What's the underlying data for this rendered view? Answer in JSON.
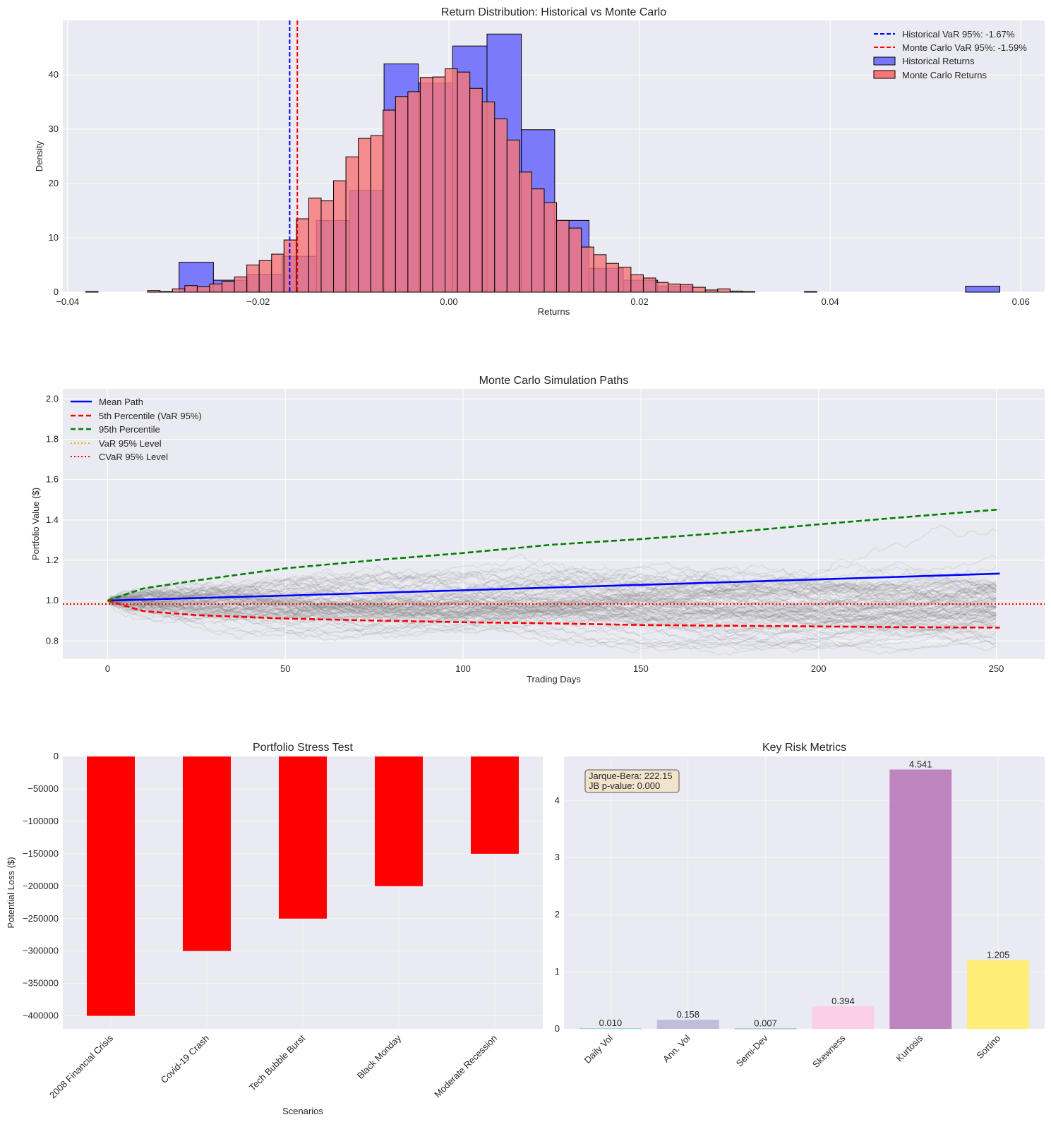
{
  "panel1": {
    "title": "Return Distribution: Historical vs Monte Carlo",
    "xlabel": "Returns",
    "ylabel": "Density",
    "legend": [
      {
        "label": "Historical VaR 95%: -1.67%",
        "color": "#0000ff",
        "kind": "dashed-line"
      },
      {
        "label": "Monte Carlo VaR 95%: -1.59%",
        "color": "#ff0000",
        "kind": "dashed-line"
      },
      {
        "label": "Historical Returns",
        "color": "#7777fb",
        "kind": "patch"
      },
      {
        "label": "Monte Carlo Returns",
        "color": "#f77678",
        "kind": "patch"
      }
    ]
  },
  "panel2": {
    "title": "Monte Carlo Simulation Paths",
    "xlabel": "Trading Days",
    "ylabel": "Portfolio Value ($)",
    "legend": [
      {
        "label": "Mean Path",
        "color": "#0000ff",
        "style": "solid"
      },
      {
        "label": "5th Percentile (VaR 95%)",
        "color": "#ff0000",
        "style": "dashed"
      },
      {
        "label": "95th Percentile",
        "color": "#008000",
        "style": "dashed"
      },
      {
        "label": "VaR 95% Level",
        "color": "#ffa500",
        "style": "dotted"
      },
      {
        "label": "CVaR 95% Level",
        "color": "#ff0000",
        "style": "dotted"
      }
    ]
  },
  "panel3": {
    "title": "Portfolio Stress Test",
    "xlabel": "Scenarios",
    "ylabel": "Potential Loss ($)"
  },
  "panel4": {
    "title": "Key Risk Metrics",
    "annotation_line1": "Jarque-Bera: 222.15",
    "annotation_line2": "JB p-value: 0.000"
  },
  "chart_data": [
    {
      "type": "histogram",
      "title": "Return Distribution: Historical vs Monte Carlo",
      "xlabel": "Returns",
      "ylabel": "Density",
      "xlim": [
        -0.0405,
        0.0625
      ],
      "ylim": [
        0,
        50
      ],
      "xticks": [
        -0.04,
        -0.02,
        0.0,
        0.02,
        0.04,
        0.06
      ],
      "yticks": [
        0,
        10,
        20,
        30,
        40
      ],
      "grid": true,
      "legend_position": "upper right",
      "series": [
        {
          "name": "Historical Returns",
          "color": "#7777fb",
          "bin_edges": [
            -0.0283,
            -0.0247,
            -0.0211,
            -0.0175,
            -0.0139,
            -0.0104,
            -0.0068,
            -0.0032,
            0.0004,
            0.004,
            0.0076,
            0.0111,
            0.0147,
            0.0183,
            0.0219,
            0.0255,
            0.0291,
            0.0327,
            0.0363,
            0.0399,
            0.0435,
            0.047,
            0.0506,
            0.0542,
            0.0578
          ],
          "density": [
            5.5,
            2.2,
            3.3,
            6.6,
            13.2,
            18.7,
            42.0,
            38.5,
            45.3,
            47.5,
            29.9,
            13.2,
            4.4,
            2.2,
            1.1,
            0,
            0,
            0,
            0,
            0,
            0,
            0,
            0,
            1.1
          ]
        },
        {
          "name": "Monte Carlo Returns",
          "color": "#f77678",
          "bin_edges": [
            -0.0381,
            -0.0368,
            -0.0355,
            -0.0342,
            -0.0329,
            -0.0316,
            -0.0303,
            -0.029,
            -0.0277,
            -0.0264,
            -0.0251,
            -0.0238,
            -0.0225,
            -0.0212,
            -0.0199,
            -0.0186,
            -0.0173,
            -0.016,
            -0.0147,
            -0.0134,
            -0.0121,
            -0.0108,
            -0.0095,
            -0.0082,
            -0.0069,
            -0.0056,
            -0.0043,
            -0.003,
            -0.0017,
            -0.0004,
            0.0009,
            0.0022,
            0.0035,
            0.0048,
            0.0061,
            0.0074,
            0.0087,
            0.01,
            0.0113,
            0.0126,
            0.0139,
            0.0152,
            0.0165,
            0.0178,
            0.0191,
            0.0204,
            0.0217,
            0.023,
            0.0243,
            0.0256,
            0.0269,
            0.0282,
            0.0295,
            0.0308,
            0.0321,
            0.0334,
            0.0347,
            0.036,
            0.0373,
            0.0386
          ],
          "density": [
            0.1,
            0,
            0,
            0,
            0,
            0.3,
            0.1,
            0.6,
            1.2,
            1.0,
            1.5,
            2.0,
            2.8,
            5.0,
            5.8,
            7.0,
            9.6,
            13.5,
            17.3,
            16.8,
            20.5,
            24.9,
            28.3,
            28.8,
            33.5,
            36.0,
            36.9,
            39.5,
            39.6,
            41.1,
            40.5,
            37.5,
            35.0,
            31.9,
            28.0,
            22.1,
            19.0,
            16.5,
            13.2,
            11.8,
            8.3,
            6.9,
            5.3,
            4.6,
            3.2,
            2.6,
            1.8,
            1.5,
            1.4,
            0.9,
            0.4,
            0.6,
            0.2,
            0.1,
            0,
            0,
            0,
            0,
            0.1
          ]
        }
      ],
      "vlines": [
        {
          "name": "Historical VaR 95%: -1.67%",
          "x": -0.0167,
          "color": "#0000ff",
          "style": "dashed"
        },
        {
          "name": "Monte Carlo VaR 95%: -1.59%",
          "x": -0.0159,
          "color": "#ff0000",
          "style": "dashed"
        }
      ]
    },
    {
      "type": "line",
      "title": "Monte Carlo Simulation Paths",
      "xlabel": "Trading Days",
      "ylabel": "Portfolio Value ($)",
      "xlim": [
        -12.6,
        263.6
      ],
      "ylim": [
        0.71,
        2.05
      ],
      "xticks": [
        0,
        50,
        100,
        150,
        200,
        250
      ],
      "yticks": [
        0.8,
        1.0,
        1.2,
        1.4,
        1.6,
        1.8,
        2.0
      ],
      "grid": true,
      "legend_position": "upper left",
      "simulated_paths": {
        "count": 100,
        "days": 251,
        "start": 1.0,
        "annual_drift": 0.125,
        "annual_vol": 0.16,
        "color": "#808080",
        "opacity": 0.15
      },
      "series": [
        {
          "name": "Mean Path",
          "color": "#0000ff",
          "style": "solid",
          "x": [
            0,
            50,
            100,
            150,
            200,
            251
          ],
          "y": [
            1.0,
            1.025,
            1.051,
            1.078,
            1.105,
            1.134
          ]
        },
        {
          "name": "5th Percentile (VaR 95%)",
          "color": "#ff0000",
          "style": "dashed",
          "x": [
            0,
            10,
            25,
            50,
            75,
            100,
            125,
            150,
            175,
            200,
            225,
            251
          ],
          "y": [
            1.0,
            0.948,
            0.928,
            0.911,
            0.901,
            0.893,
            0.887,
            0.879,
            0.875,
            0.872,
            0.868,
            0.866
          ]
        },
        {
          "name": "95th Percentile",
          "color": "#008000",
          "style": "dashed",
          "x": [
            0,
            10,
            25,
            50,
            75,
            100,
            125,
            150,
            175,
            200,
            225,
            251
          ],
          "y": [
            1.0,
            1.06,
            1.1,
            1.16,
            1.2,
            1.236,
            1.277,
            1.305,
            1.338,
            1.378,
            1.415,
            1.452
          ]
        }
      ],
      "hlines": [
        {
          "name": "VaR 95% Level",
          "y": 0.984,
          "color": "#ffa500",
          "style": "dotted"
        },
        {
          "name": "CVaR 95% Level",
          "y": 0.983,
          "color": "#ff0000",
          "style": "dotted"
        }
      ]
    },
    {
      "type": "bar",
      "title": "Portfolio Stress Test",
      "xlabel": "Scenarios",
      "ylabel": "Potential Loss ($)",
      "categories": [
        "2008 Financial Crisis",
        "Covid-19 Crash",
        "Tech Bubble Burst",
        "Black Monday",
        "Moderate Recession"
      ],
      "values": [
        -400000,
        -300000,
        -250000,
        -200000,
        -150000
      ],
      "color": "#ff0000",
      "ylim": [
        -420000,
        0
      ],
      "yticks": [
        0,
        -50000,
        -100000,
        -150000,
        -200000,
        -250000,
        -300000,
        -350000,
        -400000
      ],
      "ytick_labels": [
        "0",
        "−50000",
        "−100000",
        "−150000",
        "−200000",
        "−250000",
        "−300000",
        "−350000",
        "−400000"
      ],
      "grid": true
    },
    {
      "type": "bar",
      "title": "Key Risk Metrics",
      "categories": [
        "Daily Vol",
        "Ann. Vol",
        "Semi-Dev",
        "Skewness",
        "Kurtosis",
        "Sortino"
      ],
      "values": [
        0.01,
        0.158,
        0.007,
        0.394,
        4.541,
        1.205
      ],
      "value_labels": [
        "0.010",
        "0.158",
        "0.007",
        "0.394",
        "4.541",
        "1.205"
      ],
      "colors": [
        "#8dd3c7",
        "#bebada",
        "#80b1d3",
        "#fccde5",
        "#bc80bd",
        "#ffed6f"
      ],
      "ylim": [
        0,
        4.77
      ],
      "yticks": [
        0,
        1,
        2,
        3,
        4
      ],
      "grid": true
    }
  ]
}
